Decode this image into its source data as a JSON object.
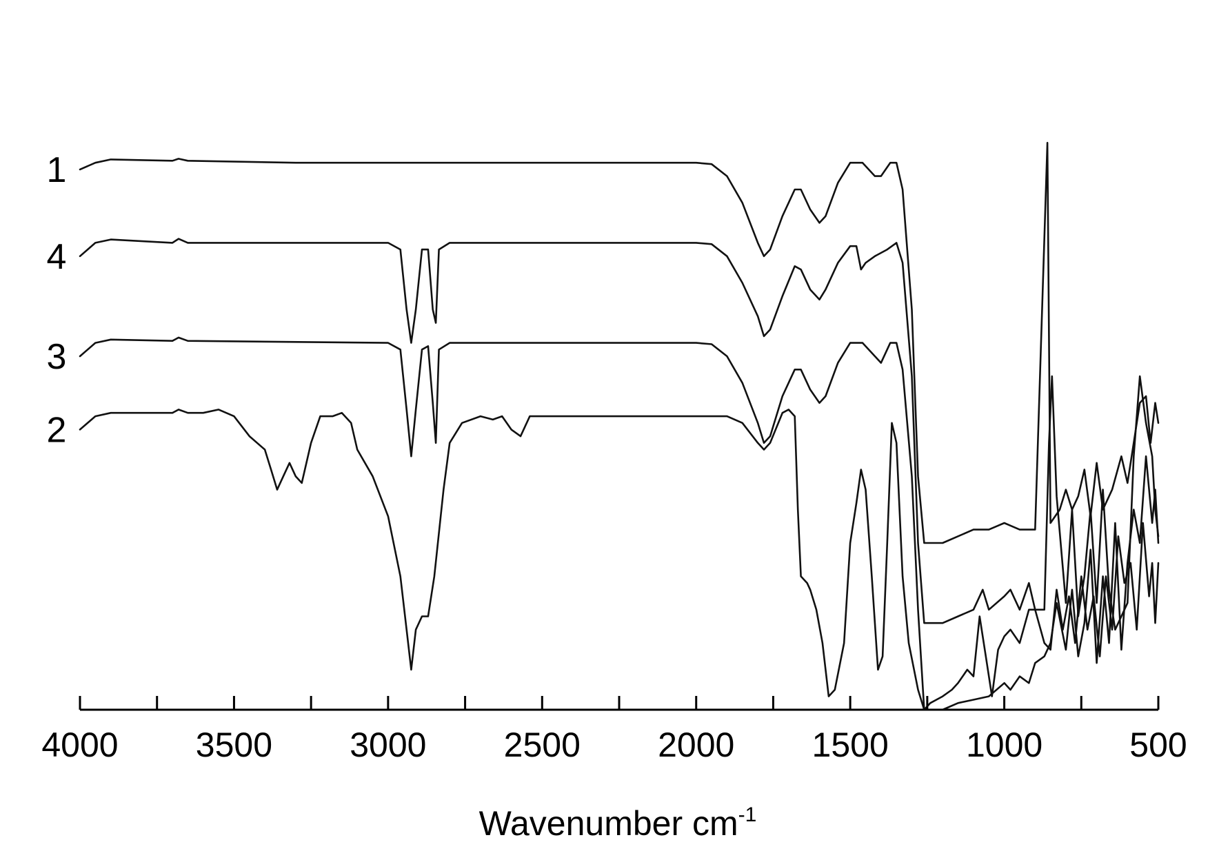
{
  "chart_data": {
    "type": "line",
    "title": "",
    "xlabel": "Wavenumber cm",
    "xlabel_superscript": "-1",
    "ylabel": "",
    "xlim": [
      4000,
      500
    ],
    "x_reversed": true,
    "x_ticks": [
      "4000",
      "3500",
      "3000",
      "2500",
      "2000",
      "1500",
      "1000",
      "500"
    ],
    "y_axis_shown": false,
    "grid": false,
    "legend": "none",
    "y_units": "relative transmittance (offset traces)",
    "series": [
      {
        "name": "1",
        "points": [
          [
            4000,
            0.81
          ],
          [
            3950,
            0.82
          ],
          [
            3900,
            0.825
          ],
          [
            3700,
            0.823
          ],
          [
            3680,
            0.826
          ],
          [
            3650,
            0.823
          ],
          [
            3300,
            0.82
          ],
          [
            3000,
            0.82
          ],
          [
            2500,
            0.82
          ],
          [
            2000,
            0.82
          ],
          [
            1950,
            0.818
          ],
          [
            1900,
            0.8
          ],
          [
            1850,
            0.76
          ],
          [
            1800,
            0.7
          ],
          [
            1780,
            0.68
          ],
          [
            1760,
            0.69
          ],
          [
            1720,
            0.74
          ],
          [
            1680,
            0.78
          ],
          [
            1660,
            0.78
          ],
          [
            1630,
            0.75
          ],
          [
            1600,
            0.73
          ],
          [
            1580,
            0.74
          ],
          [
            1540,
            0.79
          ],
          [
            1500,
            0.82
          ],
          [
            1460,
            0.82
          ],
          [
            1420,
            0.8
          ],
          [
            1400,
            0.8
          ],
          [
            1370,
            0.82
          ],
          [
            1350,
            0.82
          ],
          [
            1330,
            0.78
          ],
          [
            1300,
            0.6
          ],
          [
            1280,
            0.35
          ],
          [
            1260,
            0.25
          ],
          [
            1200,
            0.25
          ],
          [
            1100,
            0.27
          ],
          [
            1050,
            0.27
          ],
          [
            1000,
            0.28
          ],
          [
            950,
            0.27
          ],
          [
            900,
            0.27
          ],
          [
            860,
            0.85
          ],
          [
            850,
            0.28
          ],
          [
            820,
            0.3
          ],
          [
            800,
            0.33
          ],
          [
            780,
            0.3
          ],
          [
            760,
            0.32
          ],
          [
            740,
            0.36
          ],
          [
            720,
            0.29
          ],
          [
            700,
            0.37
          ],
          [
            680,
            0.3
          ],
          [
            650,
            0.33
          ],
          [
            620,
            0.38
          ],
          [
            600,
            0.34
          ],
          [
            580,
            0.4
          ],
          [
            560,
            0.46
          ],
          [
            540,
            0.47
          ],
          [
            525,
            0.4
          ],
          [
            510,
            0.46
          ],
          [
            500,
            0.43
          ]
        ]
      },
      {
        "name": "4",
        "points": [
          [
            4000,
            0.68
          ],
          [
            3950,
            0.7
          ],
          [
            3900,
            0.705
          ],
          [
            3700,
            0.7
          ],
          [
            3680,
            0.706
          ],
          [
            3650,
            0.7
          ],
          [
            3000,
            0.7
          ],
          [
            2960,
            0.69
          ],
          [
            2940,
            0.6
          ],
          [
            2925,
            0.55
          ],
          [
            2910,
            0.6
          ],
          [
            2890,
            0.69
          ],
          [
            2870,
            0.69
          ],
          [
            2855,
            0.6
          ],
          [
            2845,
            0.58
          ],
          [
            2835,
            0.69
          ],
          [
            2800,
            0.7
          ],
          [
            2500,
            0.7
          ],
          [
            2000,
            0.7
          ],
          [
            1950,
            0.698
          ],
          [
            1900,
            0.68
          ],
          [
            1850,
            0.64
          ],
          [
            1800,
            0.59
          ],
          [
            1780,
            0.56
          ],
          [
            1760,
            0.57
          ],
          [
            1720,
            0.62
          ],
          [
            1680,
            0.665
          ],
          [
            1660,
            0.66
          ],
          [
            1630,
            0.63
          ],
          [
            1600,
            0.615
          ],
          [
            1580,
            0.63
          ],
          [
            1540,
            0.67
          ],
          [
            1500,
            0.695
          ],
          [
            1480,
            0.695
          ],
          [
            1465,
            0.66
          ],
          [
            1450,
            0.67
          ],
          [
            1420,
            0.68
          ],
          [
            1380,
            0.69
          ],
          [
            1350,
            0.7
          ],
          [
            1330,
            0.67
          ],
          [
            1300,
            0.5
          ],
          [
            1280,
            0.25
          ],
          [
            1260,
            0.13
          ],
          [
            1200,
            0.13
          ],
          [
            1150,
            0.14
          ],
          [
            1100,
            0.15
          ],
          [
            1070,
            0.18
          ],
          [
            1050,
            0.15
          ],
          [
            1000,
            0.17
          ],
          [
            980,
            0.18
          ],
          [
            950,
            0.15
          ],
          [
            920,
            0.19
          ],
          [
            900,
            0.15
          ],
          [
            870,
            0.15
          ],
          [
            855,
            0.4
          ],
          [
            845,
            0.5
          ],
          [
            830,
            0.32
          ],
          [
            800,
            0.16
          ],
          [
            780,
            0.3
          ],
          [
            760,
            0.14
          ],
          [
            740,
            0.2
          ],
          [
            720,
            0.3
          ],
          [
            700,
            0.16
          ],
          [
            680,
            0.33
          ],
          [
            660,
            0.18
          ],
          [
            640,
            0.12
          ],
          [
            620,
            0.14
          ],
          [
            600,
            0.16
          ],
          [
            580,
            0.38
          ],
          [
            560,
            0.5
          ],
          [
            540,
            0.43
          ],
          [
            520,
            0.38
          ],
          [
            510,
            0.3
          ],
          [
            500,
            0.26
          ]
        ]
      },
      {
        "name": "3",
        "points": [
          [
            4000,
            0.53
          ],
          [
            3950,
            0.55
          ],
          [
            3900,
            0.555
          ],
          [
            3700,
            0.553
          ],
          [
            3680,
            0.558
          ],
          [
            3650,
            0.553
          ],
          [
            3000,
            0.55
          ],
          [
            2960,
            0.54
          ],
          [
            2940,
            0.45
          ],
          [
            2925,
            0.38
          ],
          [
            2910,
            0.45
          ],
          [
            2890,
            0.54
          ],
          [
            2870,
            0.545
          ],
          [
            2855,
            0.46
          ],
          [
            2845,
            0.4
          ],
          [
            2835,
            0.54
          ],
          [
            2800,
            0.55
          ],
          [
            2500,
            0.55
          ],
          [
            2000,
            0.55
          ],
          [
            1950,
            0.548
          ],
          [
            1900,
            0.53
          ],
          [
            1850,
            0.49
          ],
          [
            1800,
            0.43
          ],
          [
            1780,
            0.4
          ],
          [
            1760,
            0.41
          ],
          [
            1720,
            0.47
          ],
          [
            1680,
            0.51
          ],
          [
            1660,
            0.51
          ],
          [
            1630,
            0.48
          ],
          [
            1600,
            0.46
          ],
          [
            1580,
            0.47
          ],
          [
            1540,
            0.52
          ],
          [
            1500,
            0.55
          ],
          [
            1460,
            0.55
          ],
          [
            1420,
            0.53
          ],
          [
            1400,
            0.52
          ],
          [
            1370,
            0.55
          ],
          [
            1350,
            0.55
          ],
          [
            1330,
            0.51
          ],
          [
            1300,
            0.35
          ],
          [
            1280,
            0.15
          ],
          [
            1260,
            0.0
          ],
          [
            1200,
            0.0
          ],
          [
            1150,
            0.01
          ],
          [
            1100,
            0.015
          ],
          [
            1050,
            0.02
          ],
          [
            1000,
            0.04
          ],
          [
            980,
            0.03
          ],
          [
            950,
            0.05
          ],
          [
            920,
            0.04
          ],
          [
            900,
            0.07
          ],
          [
            870,
            0.08
          ],
          [
            850,
            0.1
          ],
          [
            830,
            0.16
          ],
          [
            800,
            0.09
          ],
          [
            780,
            0.18
          ],
          [
            760,
            0.08
          ],
          [
            740,
            0.13
          ],
          [
            720,
            0.24
          ],
          [
            700,
            0.07
          ],
          [
            680,
            0.2
          ],
          [
            660,
            0.1
          ],
          [
            640,
            0.28
          ],
          [
            620,
            0.09
          ],
          [
            600,
            0.22
          ],
          [
            580,
            0.3
          ],
          [
            560,
            0.25
          ],
          [
            540,
            0.38
          ],
          [
            520,
            0.28
          ],
          [
            510,
            0.33
          ],
          [
            500,
            0.25
          ]
        ]
      },
      {
        "name": "2",
        "points": [
          [
            4000,
            0.42
          ],
          [
            3950,
            0.44
          ],
          [
            3900,
            0.445
          ],
          [
            3700,
            0.445
          ],
          [
            3680,
            0.45
          ],
          [
            3650,
            0.445
          ],
          [
            3600,
            0.445
          ],
          [
            3550,
            0.45
          ],
          [
            3500,
            0.44
          ],
          [
            3450,
            0.41
          ],
          [
            3400,
            0.39
          ],
          [
            3380,
            0.36
          ],
          [
            3360,
            0.33
          ],
          [
            3340,
            0.35
          ],
          [
            3320,
            0.37
          ],
          [
            3300,
            0.35
          ],
          [
            3280,
            0.34
          ],
          [
            3250,
            0.4
          ],
          [
            3220,
            0.44
          ],
          [
            3180,
            0.44
          ],
          [
            3150,
            0.445
          ],
          [
            3120,
            0.43
          ],
          [
            3100,
            0.39
          ],
          [
            3050,
            0.35
          ],
          [
            3000,
            0.29
          ],
          [
            2960,
            0.2
          ],
          [
            2940,
            0.12
          ],
          [
            2925,
            0.06
          ],
          [
            2910,
            0.12
          ],
          [
            2890,
            0.14
          ],
          [
            2870,
            0.14
          ],
          [
            2850,
            0.2
          ],
          [
            2820,
            0.33
          ],
          [
            2800,
            0.4
          ],
          [
            2760,
            0.43
          ],
          [
            2700,
            0.44
          ],
          [
            2660,
            0.435
          ],
          [
            2630,
            0.44
          ],
          [
            2600,
            0.42
          ],
          [
            2570,
            0.41
          ],
          [
            2540,
            0.44
          ],
          [
            2500,
            0.44
          ],
          [
            2460,
            0.44
          ],
          [
            2000,
            0.44
          ],
          [
            1950,
            0.44
          ],
          [
            1900,
            0.44
          ],
          [
            1850,
            0.43
          ],
          [
            1800,
            0.4
          ],
          [
            1780,
            0.39
          ],
          [
            1760,
            0.4
          ],
          [
            1720,
            0.445
          ],
          [
            1700,
            0.45
          ],
          [
            1680,
            0.44
          ],
          [
            1670,
            0.3
          ],
          [
            1660,
            0.2
          ],
          [
            1640,
            0.19
          ],
          [
            1630,
            0.18
          ],
          [
            1610,
            0.15
          ],
          [
            1590,
            0.1
          ],
          [
            1570,
            0.02
          ],
          [
            1550,
            0.03
          ],
          [
            1520,
            0.1
          ],
          [
            1500,
            0.25
          ],
          [
            1480,
            0.31
          ],
          [
            1465,
            0.36
          ],
          [
            1450,
            0.33
          ],
          [
            1430,
            0.2
          ],
          [
            1410,
            0.06
          ],
          [
            1395,
            0.08
          ],
          [
            1380,
            0.25
          ],
          [
            1365,
            0.43
          ],
          [
            1350,
            0.4
          ],
          [
            1330,
            0.2
          ],
          [
            1310,
            0.1
          ],
          [
            1280,
            0.03
          ],
          [
            1260,
            0.0
          ],
          [
            1240,
            0.01
          ],
          [
            1200,
            0.02
          ],
          [
            1170,
            0.03
          ],
          [
            1150,
            0.04
          ],
          [
            1120,
            0.06
          ],
          [
            1100,
            0.05
          ],
          [
            1080,
            0.14
          ],
          [
            1060,
            0.08
          ],
          [
            1040,
            0.02
          ],
          [
            1020,
            0.09
          ],
          [
            1000,
            0.11
          ],
          [
            980,
            0.12
          ],
          [
            950,
            0.1
          ],
          [
            920,
            0.15
          ],
          [
            900,
            0.15
          ],
          [
            870,
            0.1
          ],
          [
            850,
            0.09
          ],
          [
            830,
            0.18
          ],
          [
            810,
            0.12
          ],
          [
            790,
            0.17
          ],
          [
            770,
            0.1
          ],
          [
            750,
            0.2
          ],
          [
            730,
            0.12
          ],
          [
            710,
            0.17
          ],
          [
            690,
            0.08
          ],
          [
            670,
            0.2
          ],
          [
            650,
            0.12
          ],
          [
            630,
            0.26
          ],
          [
            610,
            0.19
          ],
          [
            590,
            0.22
          ],
          [
            570,
            0.12
          ],
          [
            550,
            0.28
          ],
          [
            530,
            0.17
          ],
          [
            520,
            0.22
          ],
          [
            510,
            0.13
          ],
          [
            500,
            0.22
          ]
        ]
      }
    ]
  }
}
